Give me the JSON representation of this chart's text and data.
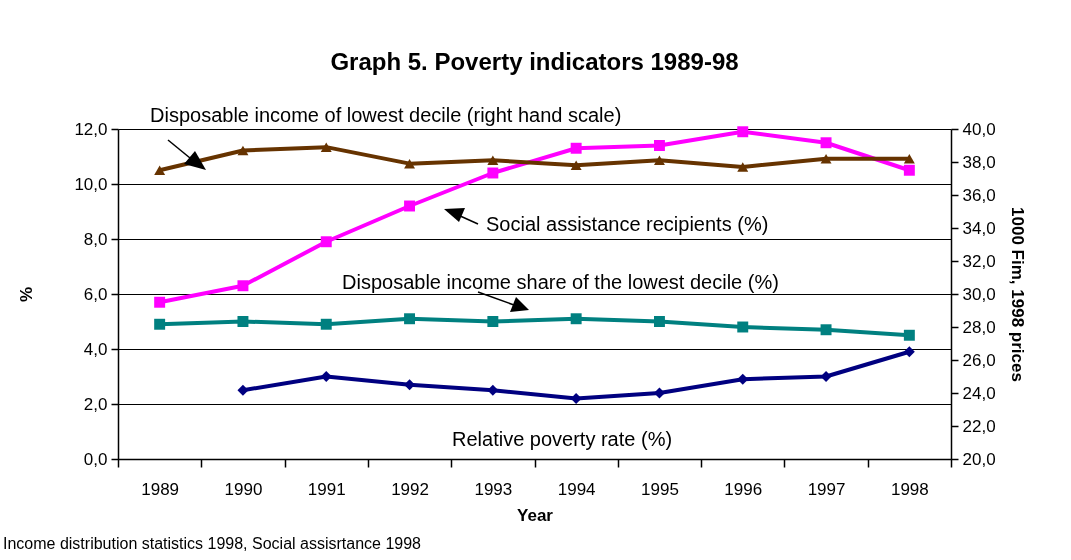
{
  "chart_data": {
    "type": "line",
    "title": "Graph 5. Poverty indicators 1989-98",
    "xlabel": "Year",
    "ylabel": "%",
    "y2label": "1000 Fim, 1998 prices",
    "categories": [
      "1989",
      "1990",
      "1991",
      "1992",
      "1993",
      "1994",
      "1995",
      "1996",
      "1997",
      "1998"
    ],
    "series": [
      {
        "name": "Disposable income of lowest decile (right hand scale)",
        "color": "#663300",
        "axis": "y2",
        "marker": "triangle",
        "values": [
          37.5,
          38.7,
          38.9,
          37.9,
          38.1,
          37.8,
          38.1,
          37.7,
          38.2,
          38.2
        ]
      },
      {
        "name": "Social assistance recipients (%)",
        "color": "#ff00ff",
        "marker": "square",
        "values": [
          5.7,
          6.3,
          7.9,
          9.2,
          10.4,
          11.3,
          11.4,
          11.9,
          11.5,
          10.5
        ]
      },
      {
        "name": "Disposable income share of the lowest decile (%)",
        "color": "#008080",
        "marker": "square",
        "values": [
          4.9,
          5.0,
          4.9,
          5.1,
          5.0,
          5.1,
          5.0,
          4.8,
          4.7,
          4.5
        ]
      },
      {
        "name": "Relative poverty rate (%)",
        "color": "#000080",
        "marker": "diamond",
        "values": [
          null,
          2.5,
          3.0,
          2.7,
          2.5,
          2.2,
          2.4,
          2.9,
          3.0,
          3.9
        ]
      }
    ],
    "ylim": [
      0,
      12
    ],
    "yticks": [
      {
        "value": 0,
        "label": "0,0"
      },
      {
        "value": 2,
        "label": "2,0"
      },
      {
        "value": 4,
        "label": "4,0"
      },
      {
        "value": 6,
        "label": "6,0"
      },
      {
        "value": 8,
        "label": "8,0"
      },
      {
        "value": 10,
        "label": "10,0"
      },
      {
        "value": 12,
        "label": "12,0"
      }
    ],
    "y2lim": [
      20,
      40
    ],
    "y2ticks": [
      {
        "value": 20,
        "label": "20,0"
      },
      {
        "value": 22,
        "label": "22,0"
      },
      {
        "value": 24,
        "label": "24,0"
      },
      {
        "value": 26,
        "label": "26,0"
      },
      {
        "value": 28,
        "label": "28,0"
      },
      {
        "value": 30,
        "label": "30,0"
      },
      {
        "value": 32,
        "label": "32,0"
      },
      {
        "value": 34,
        "label": "34,0"
      },
      {
        "value": 36,
        "label": "36,0"
      },
      {
        "value": 38,
        "label": "38,0"
      },
      {
        "value": 40,
        "label": "40,0"
      }
    ],
    "grid": "y",
    "legend": false,
    "annotations": [
      "Income distribution statistics 1998, Social assisrtance 1998"
    ]
  }
}
